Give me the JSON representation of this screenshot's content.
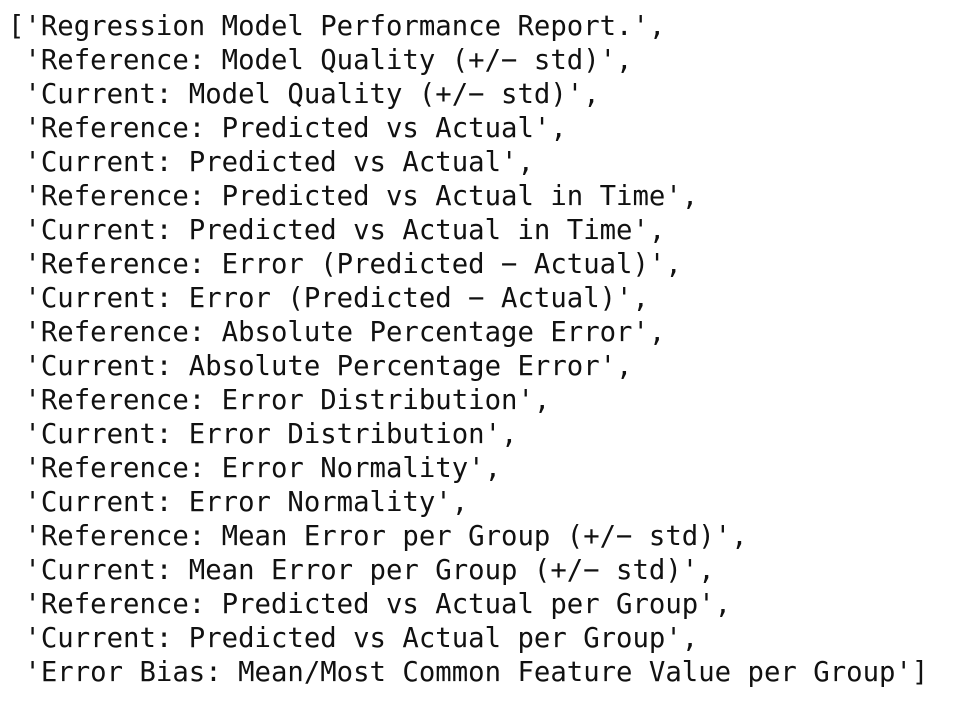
{
  "output": {
    "lines": [
      "['Regression Model Performance Report.',",
      " 'Reference: Model Quality (+/− std)',",
      " 'Current: Model Quality (+/− std)',",
      " 'Reference: Predicted vs Actual',",
      " 'Current: Predicted vs Actual',",
      " 'Reference: Predicted vs Actual in Time',",
      " 'Current: Predicted vs Actual in Time',",
      " 'Reference: Error (Predicted − Actual)',",
      " 'Current: Error (Predicted − Actual)',",
      " 'Reference: Absolute Percentage Error',",
      " 'Current: Absolute Percentage Error',",
      " 'Reference: Error Distribution',",
      " 'Current: Error Distribution',",
      " 'Reference: Error Normality',",
      " 'Current: Error Normality',",
      " 'Reference: Mean Error per Group (+/− std)',",
      " 'Current: Mean Error per Group (+/− std)',",
      " 'Reference: Predicted vs Actual per Group',",
      " 'Current: Predicted vs Actual per Group',",
      " 'Error Bias: Mean/Most Common Feature Value per Group']"
    ]
  }
}
